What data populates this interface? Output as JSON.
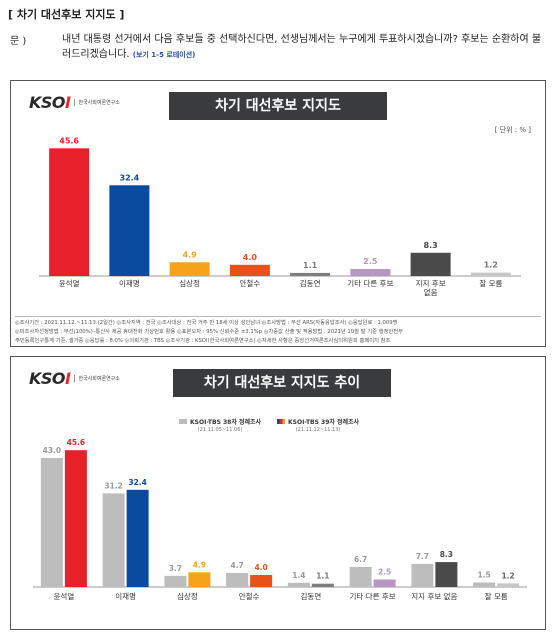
{
  "header": "[ 차기 대선후보 지지도 ]",
  "question": {
    "label": "문 )",
    "text": "내년 대통령 선거에서 다음 후보들 중 선택하신다면, 선생님께서는 누구에게 투표하시겠습니까? 후보는 순환하여 불러드리겠습니다.",
    "note": "(보기 1-5 로테이션)"
  },
  "logo": {
    "mark": "KSOI",
    "sub": "한국사회여론연구소"
  },
  "panel1": {
    "unit": "[ 단위 : % ]",
    "notes": [
      "◎조사기간 : 2021.11.12.~11.13.(2일간)  ◎조사지역 : 전국  ◎조사대상 : 전국 거주 만 18세 이상 성인남녀  ◎조사방법 : 무선 ARS(자동응답조사)  ◎응답완료 : 1,009명",
      "◎피조사자선정방법 : 무선(100%)–통신사 제공 휴대전화 가상번호 활용  ◎표본오차 : 95% 신뢰수준 ±3.1%p  ◎가중값 산출 및 적용방법 : 2021년 10월 말 기준 행정안전부",
      "주민등록인구통계 기준, 셀가중  ◎응답률 : 8.0%  ◎의뢰기관 : TBS  ◎조사기관 : KSOI(한국사회여론연구소)  ◎자세한 사항은 중앙선거여론조사심의위원회 홈페이지 참조"
    ]
  },
  "colors": {
    "candidates": [
      "#e8202a",
      "#0a4a9f",
      "#f6a31b",
      "#e8521a",
      "#7e7e7e",
      "#b796c3",
      "#4a4a4a",
      "#c7c7c7"
    ],
    "prev_series": "#bdbdbd",
    "prev_value_text": "#9a9a9a",
    "legend_current": [
      "#e8202a",
      "#0a4a9f",
      "#f6a31b"
    ]
  },
  "chart_data": [
    {
      "type": "bar",
      "title": "차기 대선후보 지지도",
      "categories": [
        "윤석열",
        "이재명",
        "심상정",
        "안철수",
        "김동연",
        "기타 다른 후보",
        "지지 후보 없음",
        "잘 모름"
      ],
      "category_lines": [
        [
          "윤석열"
        ],
        [
          "이재명"
        ],
        [
          "심상정"
        ],
        [
          "안철수"
        ],
        [
          "김동연"
        ],
        [
          "기타 다른 후보"
        ],
        [
          "지지 후보",
          "없음"
        ],
        [
          "잘 모름"
        ]
      ],
      "values": [
        45.6,
        32.4,
        4.9,
        4.0,
        1.1,
        2.5,
        8.3,
        1.2
      ],
      "ylim": [
        0,
        50
      ],
      "grid": false
    },
    {
      "type": "bar",
      "title": "차기 대선후보 지지도 추이",
      "categories": [
        "윤석열",
        "이재명",
        "심상정",
        "안철수",
        "김동연",
        "기타 다른 후보",
        "지지 후보 없음",
        "잘 모름"
      ],
      "series": [
        {
          "name": "KSOI-TBS 38차 정례조사",
          "period": "(21.11.05~11.06)",
          "values": [
            43.0,
            31.2,
            3.7,
            4.7,
            1.4,
            6.7,
            7.7,
            1.5
          ]
        },
        {
          "name": "KSOI-TBS 39차 정례조사",
          "period": "(21.11.12~11.13)",
          "values": [
            45.6,
            32.4,
            4.9,
            4.0,
            1.1,
            2.5,
            8.3,
            1.2
          ]
        }
      ],
      "legend": "top",
      "ylim": [
        0,
        50
      ],
      "grid": false
    }
  ]
}
